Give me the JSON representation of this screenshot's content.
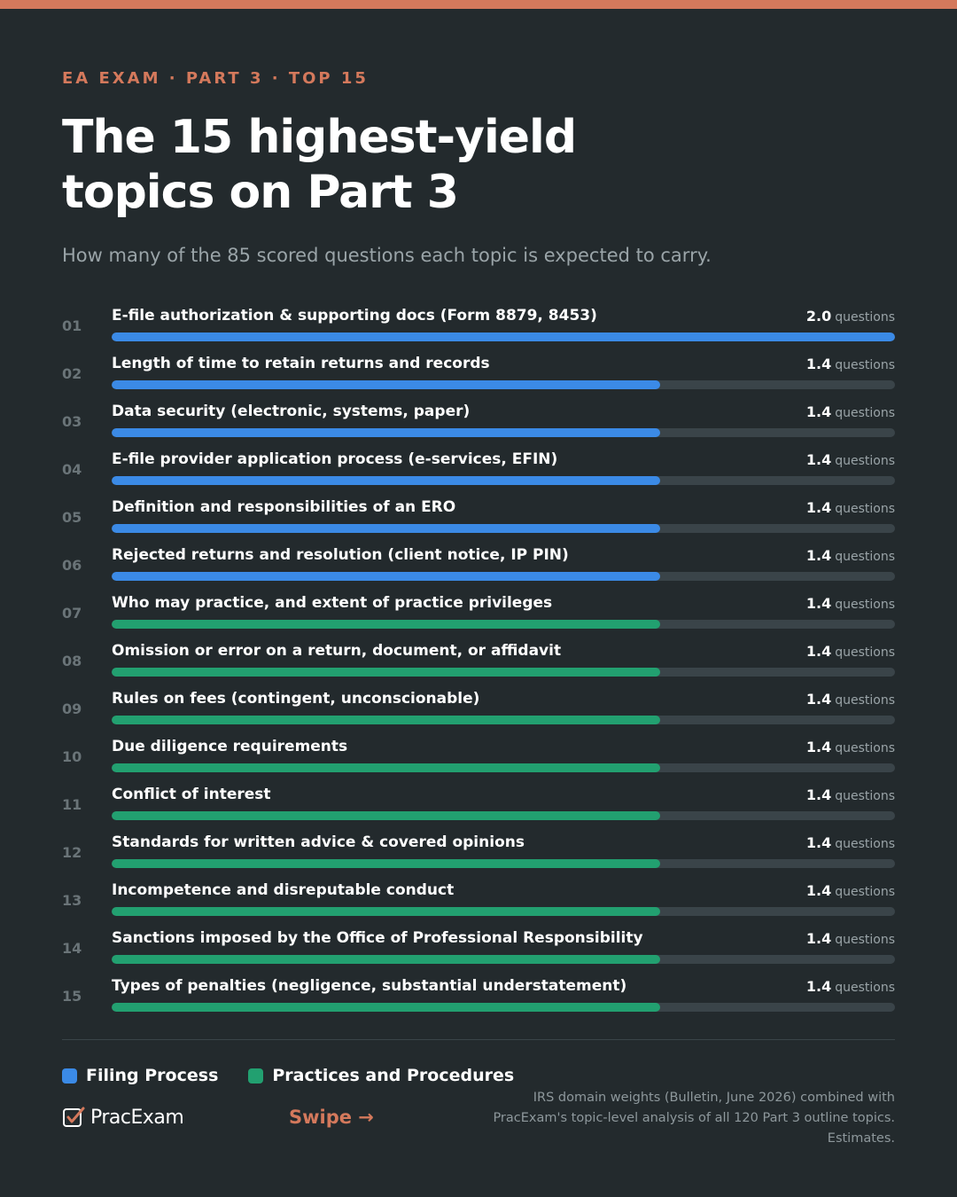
{
  "header": {
    "eyebrow": "EA EXAM · PART 3 · TOP 15",
    "title_line1": "The 15 highest-yield",
    "title_line2": "topics on Part 3",
    "subtitle": "How many of the 85 scored questions each topic is expected to carry."
  },
  "colors": {
    "accent": "#d4795c",
    "filing": "#3b8ae6",
    "practices": "#22a070",
    "track": "#3a4449",
    "background": "#232a2d"
  },
  "chart_data": {
    "type": "bar",
    "orientation": "horizontal",
    "xlim": [
      0,
      2.0
    ],
    "unit": "questions",
    "categories": [
      "E-file authorization & supporting docs (Form 8879, 8453)",
      "Length of time to retain returns and records",
      "Data security (electronic, systems, paper)",
      "E-file provider application process (e-services, EFIN)",
      "Definition and responsibilities of an ERO",
      "Rejected returns and resolution (client notice, IP PIN)",
      "Who may practice, and extent of practice privileges",
      "Omission or error on a return, document, or affidavit",
      "Rules on fees (contingent, unconscionable)",
      "Due diligence requirements",
      "Conflict of interest",
      "Standards for written advice & covered opinions",
      "Incompetence and disreputable conduct",
      "Sanctions imposed by the Office of Professional Responsibility",
      "Types of penalties (negligence, substantial understatement)"
    ],
    "ranks": [
      "01",
      "02",
      "03",
      "04",
      "05",
      "06",
      "07",
      "08",
      "09",
      "10",
      "11",
      "12",
      "13",
      "14",
      "15"
    ],
    "values": [
      2.0,
      1.4,
      1.4,
      1.4,
      1.4,
      1.4,
      1.4,
      1.4,
      1.4,
      1.4,
      1.4,
      1.4,
      1.4,
      1.4,
      1.4
    ],
    "value_labels": [
      "2.0",
      "1.4",
      "1.4",
      "1.4",
      "1.4",
      "1.4",
      "1.4",
      "1.4",
      "1.4",
      "1.4",
      "1.4",
      "1.4",
      "1.4",
      "1.4",
      "1.4"
    ],
    "groups": [
      "filing",
      "filing",
      "filing",
      "filing",
      "filing",
      "filing",
      "practices",
      "practices",
      "practices",
      "practices",
      "practices",
      "practices",
      "practices",
      "practices",
      "practices"
    ],
    "legend": [
      {
        "key": "filing",
        "label": "Filing Process"
      },
      {
        "key": "practices",
        "label": "Practices and Procedures"
      }
    ],
    "legend_position": "bottom-left"
  },
  "footer": {
    "brand": "PracExam",
    "swipe": "Swipe →",
    "source": "IRS domain weights (Bulletin, June 2026) combined with PracExam's topic-level analysis of all 120 Part 3 outline topics. Estimates."
  }
}
